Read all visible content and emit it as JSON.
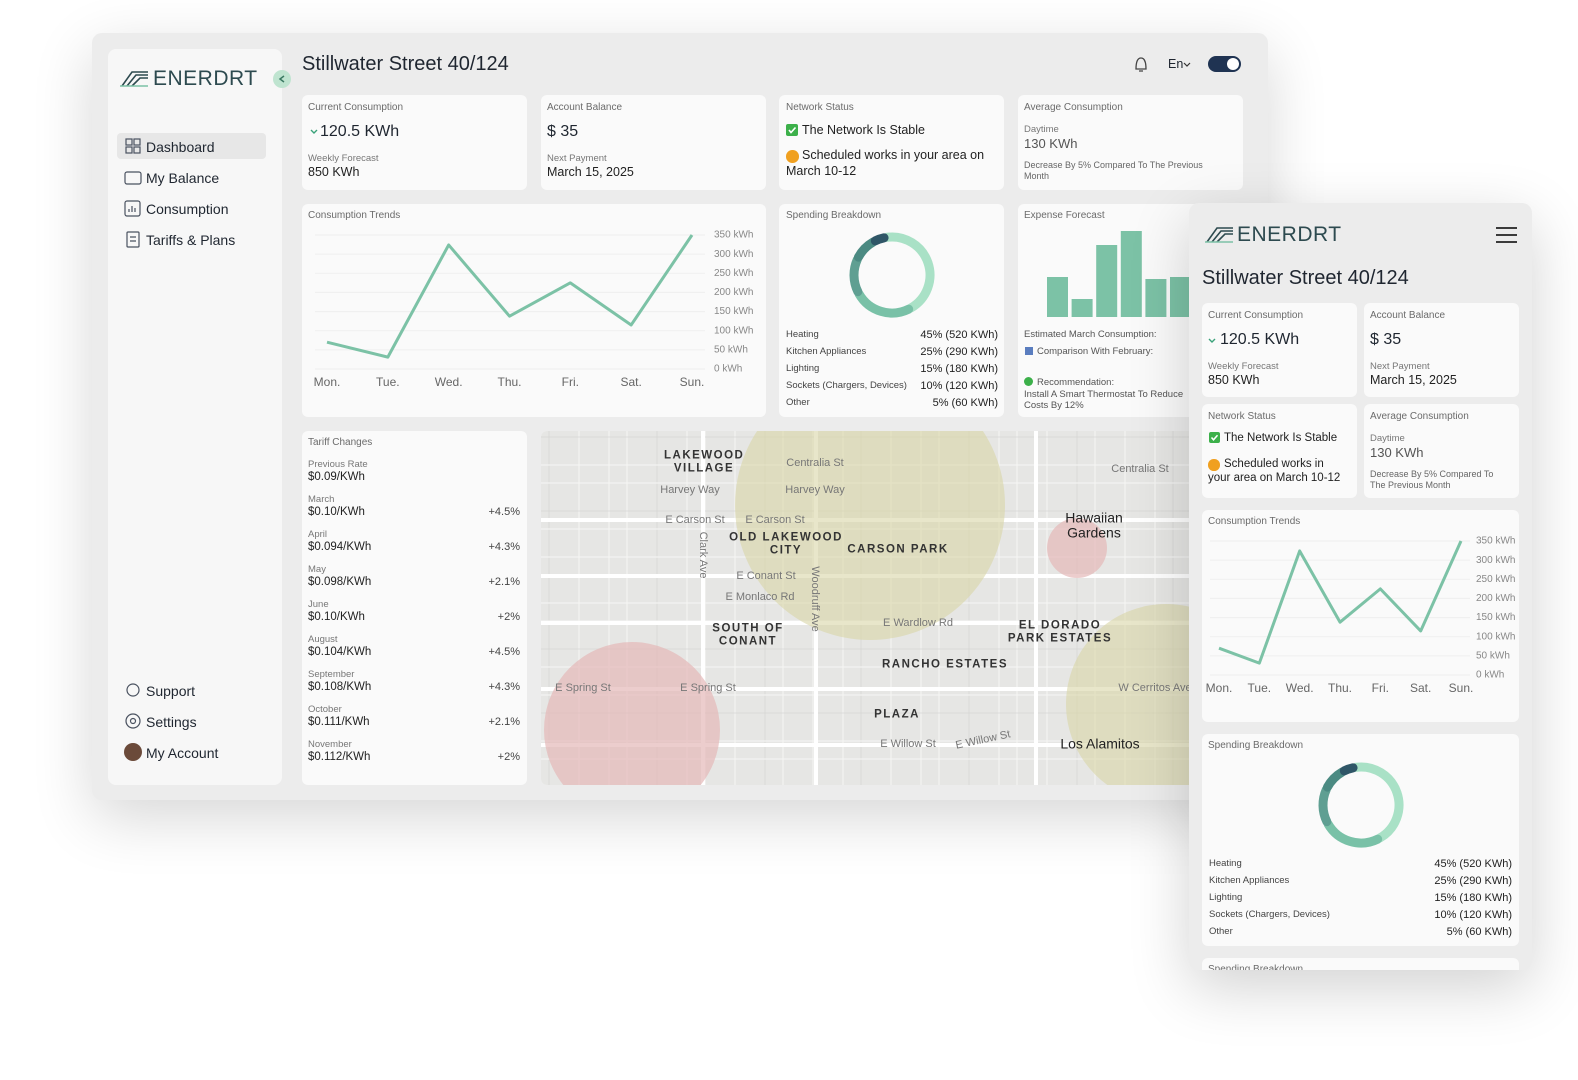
{
  "brand": "ENERDRT",
  "header": {
    "address": "Stillwater Street 40/124",
    "language": "En"
  },
  "nav": {
    "main": [
      "Dashboard",
      "My Balance",
      "Consumption",
      "Tariffs & Plans"
    ],
    "bottom": [
      "Support",
      "Settings",
      "My Account"
    ]
  },
  "cards": {
    "current_consumption": {
      "title": "Current Consumption",
      "value": "120.5 KWh",
      "forecast_label": "Weekly Forecast",
      "forecast": "850 KWh"
    },
    "account_balance": {
      "title": "Account Balance",
      "value": "$ 35",
      "next_label": "Next Payment",
      "next": "March 15, 2025"
    },
    "network_status": {
      "title": "Network Status",
      "status": "The Network Is Stable",
      "notice": "Scheduled works in your area on March 10-12"
    },
    "average_consumption": {
      "title": "Average Consumption",
      "period": "Daytime",
      "value": "130 KWh",
      "note": "Decrease By 5% Compared To The Previous Month"
    }
  },
  "chart_data": [
    {
      "type": "line",
      "title": "Consumption Trends",
      "categories": [
        "Mon.",
        "Tue.",
        "Wed.",
        "Thu.",
        "Fri.",
        "Sat.",
        "Sun."
      ],
      "values": [
        70,
        31,
        324,
        138,
        225,
        115,
        350
      ],
      "color": "#7cc2a6",
      "ylim": [
        0,
        350
      ],
      "yticks": [
        {
          "value": 0,
          "label": "0 kWh"
        },
        {
          "value": 50,
          "label": "50 kWh"
        },
        {
          "value": 100,
          "label": "100 kWh"
        },
        {
          "value": 150,
          "label": "150 kWh"
        },
        {
          "value": 200,
          "label": "200 kWh"
        },
        {
          "value": 250,
          "label": "250 kWh"
        },
        {
          "value": 300,
          "label": "300 kWh"
        },
        {
          "value": 350,
          "label": "350 kWh"
        }
      ],
      "grid": true
    },
    {
      "type": "donut",
      "title": "Spending Breakdown",
      "categories": [
        "Heating",
        "Kitchen Appliances",
        "Lighting",
        "Sockets (Chargers, Devices)",
        "Other"
      ],
      "values": [
        45,
        25,
        15,
        10,
        5
      ],
      "value_labels": [
        "45% (520 KWh)",
        "25% (290 KWh)",
        "15% (180 KWh)",
        "10% (120 KWh)",
        "5% (60 KWh)"
      ],
      "colors": [
        "#a9e1c6",
        "#79c1a7",
        "#5f9f92",
        "#4b8a82",
        "#2f5667"
      ]
    },
    {
      "type": "bar",
      "title": "Expense Forecast",
      "values": [
        40,
        18,
        72,
        86,
        38,
        40
      ],
      "color": "#7cc2a6",
      "notes": {
        "estimate": "Estimated March Consumption:",
        "comparison": "Comparison With February:",
        "recommendation_label": "Recommendation:",
        "recommendation": "Install A Smart Thermostat To Reduce Costs By 12%"
      }
    }
  ],
  "tariffs": {
    "title": "Tariff Changes",
    "previous": {
      "label": "Previous Rate",
      "rate": "$0.09/KWh"
    },
    "rows": [
      {
        "month": "March",
        "rate": "$0.10/KWh",
        "change": "+4.5%"
      },
      {
        "month": "April",
        "rate": "$0.094/KWh",
        "change": "+4.3%"
      },
      {
        "month": "May",
        "rate": "$0.098/KWh",
        "change": "+2.1%"
      },
      {
        "month": "June",
        "rate": "$0.10/KWh",
        "change": "+2%"
      },
      {
        "month": "August",
        "rate": "$0.104/KWh",
        "change": "+4.5%"
      },
      {
        "month": "September",
        "rate": "$0.108/KWh",
        "change": "+4.3%"
      },
      {
        "month": "October",
        "rate": "$0.111/KWh",
        "change": "+2.1%"
      },
      {
        "month": "November",
        "rate": "$0.112/KWh",
        "change": "+2%"
      }
    ]
  },
  "map": {
    "labels": [
      "LAKEWOOD VILLAGE",
      "Harvey Way",
      "Centralia St",
      "Harvey Way",
      "E Carson St",
      "E Carson St",
      "OLD LAKEWOOD CITY",
      "CARSON PARK",
      "Hawaiian Gardens",
      "Centralia St",
      "E Conant St",
      "E Monlaco Rd",
      "SOUTH OF CONANT",
      "E Wardlow Rd",
      "EL DORADO PARK ESTATES",
      "RANCHO ESTATES",
      "E Spring St",
      "E Spring St",
      "PLAZA",
      "E Willow St",
      "E Willow St",
      "Los Alamitos",
      "W Cerritos Ave",
      "Clark Ave",
      "Woodruff Ave"
    ]
  }
}
